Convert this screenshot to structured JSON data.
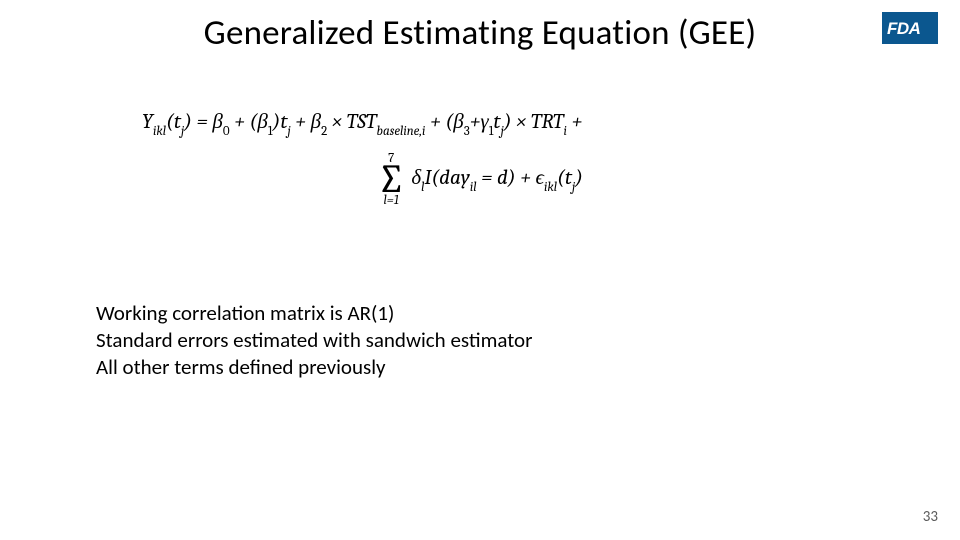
{
  "title": "Generalized Estimating Equation (GEE)",
  "logo": {
    "text": "FDA",
    "bg_color": "#0b578f",
    "text_color": "#ffffff"
  },
  "equation": {
    "line1_html": "Y<span class='sub'>ikl</span>(t<span class='sub'>j</span>) = β<span class='subup'>0</span> + (β<span class='subup'>1</span>)t<span class='sub'>j</span> + β<span class='subup'>2</span> × TST<span class='sub'>baseline,i</span> + (β<span class='subup'>3</span>+γ<span class='subup'>1</span>t<span class='sub'>j</span>) × TRT<span class='sub'>i</span> +",
    "sum_upper": "7",
    "sum_lower_html": "l=1",
    "line2_html": "δ<span class='sub'>l</span>I(day<span class='sub'>il</span> = d) + ϵ<span class='sub'>ikl</span>(t<span class='sub'>j</span>)",
    "font_family": "Cambria, Times New Roman, serif",
    "font_size_pt": 16,
    "color": "#000000"
  },
  "body_lines": [
    "Working correlation matrix is AR(1)",
    "Standard errors estimated with sandwich estimator",
    "All other terms defined previously"
  ],
  "page_number": "33",
  "styles": {
    "background_color": "#ffffff",
    "title_fontsize_pt": 26,
    "body_fontsize_pt": 16,
    "pagenum_color": "#595959"
  }
}
